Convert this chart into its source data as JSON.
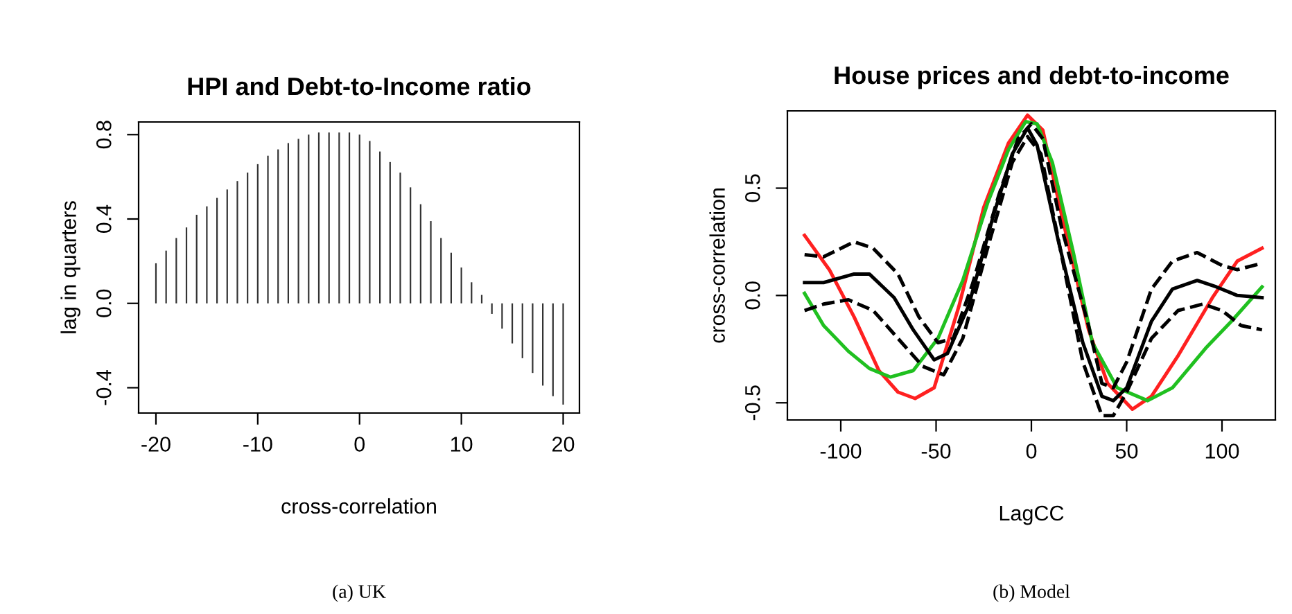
{
  "chart_data": [
    {
      "type": "bar",
      "title": "HPI and Debt-to-Income ratio",
      "xlabel": "cross-correlation",
      "ylabel": "lag in quarters",
      "color": "#333333",
      "x": [
        -20,
        -19,
        -18,
        -17,
        -16,
        -15,
        -14,
        -13,
        -12,
        -11,
        -10,
        -9,
        -8,
        -7,
        -6,
        -5,
        -4,
        -3,
        -2,
        -1,
        0,
        1,
        2,
        3,
        4,
        5,
        6,
        7,
        8,
        9,
        10,
        11,
        12,
        13,
        14,
        15,
        16,
        17,
        18,
        19,
        20
      ],
      "values": [
        0.19,
        0.25,
        0.31,
        0.36,
        0.42,
        0.46,
        0.5,
        0.54,
        0.58,
        0.62,
        0.66,
        0.7,
        0.73,
        0.76,
        0.78,
        0.8,
        0.81,
        0.81,
        0.81,
        0.81,
        0.8,
        0.77,
        0.72,
        0.67,
        0.62,
        0.55,
        0.47,
        0.39,
        0.31,
        0.24,
        0.17,
        0.1,
        0.04,
        -0.05,
        -0.12,
        -0.19,
        -0.26,
        -0.33,
        -0.39,
        -0.44,
        -0.48
      ],
      "xlim": [
        -21.7,
        21.6
      ],
      "ylim": [
        -0.52,
        0.86
      ],
      "xticks": [
        -20,
        -10,
        0,
        10,
        20
      ],
      "yticks": [
        {
          "value": -0.4,
          "label": "-0.4"
        },
        {
          "value": 0.0,
          "label": "0.0"
        },
        {
          "value": 0.4,
          "label": "0.4"
        },
        {
          "value": 0.8,
          "label": "0.8"
        }
      ],
      "grid": false,
      "annotations": [
        "(a) UK"
      ]
    },
    {
      "type": "line",
      "title": "House prices and debt-to-income",
      "xlabel": "LagCC",
      "ylabel": "cross-correlation",
      "xlim": [
        -128,
        128
      ],
      "ylim": [
        -0.58,
        0.86
      ],
      "xticks": [
        -100,
        -50,
        0,
        50,
        100
      ],
      "yticks": [
        {
          "value": -0.5,
          "label": "-0.5"
        },
        {
          "value": 0.0,
          "label": "0.0"
        },
        {
          "value": 0.5,
          "label": "0.5"
        }
      ],
      "grid": false,
      "marker": "none",
      "annotations": [
        "(b) Model"
      ],
      "series": [
        {
          "color": "#ff2020",
          "line_style": "solid",
          "x": [
            -119,
            -106,
            -93,
            -80,
            -70,
            -61,
            -51,
            -38,
            -25,
            -12,
            -2,
            6,
            16,
            30,
            40,
            53,
            63,
            77,
            95,
            108,
            121
          ],
          "values": [
            0.28,
            0.12,
            -0.1,
            -0.35,
            -0.45,
            -0.48,
            -0.43,
            -0.05,
            0.41,
            0.71,
            0.84,
            0.77,
            0.37,
            -0.16,
            -0.41,
            -0.53,
            -0.47,
            -0.28,
            -0.01,
            0.16,
            0.22
          ]
        },
        {
          "color": "#20c020",
          "line_style": "solid",
          "x": [
            -119,
            -109,
            -96,
            -85,
            -74,
            -62,
            -49,
            -36,
            -23,
            -12,
            -3,
            3,
            11,
            22,
            32,
            45,
            61,
            74,
            92,
            105,
            121
          ],
          "values": [
            0.01,
            -0.14,
            -0.26,
            -0.34,
            -0.38,
            -0.35,
            -0.2,
            0.07,
            0.43,
            0.68,
            0.81,
            0.8,
            0.62,
            0.2,
            -0.22,
            -0.43,
            -0.49,
            -0.43,
            -0.24,
            -0.12,
            0.04
          ]
        },
        {
          "color": "#000000",
          "line_style": "dashed",
          "x": [
            -119,
            -109,
            -93,
            -83,
            -70,
            -59,
            -49,
            -41,
            -31,
            -17,
            -7,
            0,
            6,
            16,
            30,
            37,
            43,
            50,
            63,
            74,
            87,
            100,
            108,
            121
          ],
          "values": [
            0.19,
            0.18,
            0.25,
            0.22,
            0.1,
            -0.1,
            -0.22,
            -0.2,
            0.05,
            0.47,
            0.73,
            0.8,
            0.73,
            0.31,
            -0.14,
            -0.41,
            -0.43,
            -0.31,
            0.03,
            0.16,
            0.2,
            0.14,
            0.12,
            0.15
          ]
        },
        {
          "color": "#000000",
          "line_style": "dashed",
          "x": [
            -119,
            -109,
            -96,
            -83,
            -70,
            -57,
            -46,
            -36,
            -23,
            -10,
            -2,
            5,
            16,
            27,
            37,
            43,
            50,
            63,
            77,
            90,
            100,
            110,
            121
          ],
          "values": [
            -0.07,
            -0.04,
            -0.02,
            -0.07,
            -0.2,
            -0.33,
            -0.37,
            -0.2,
            0.22,
            0.62,
            0.74,
            0.66,
            0.18,
            -0.31,
            -0.56,
            -0.56,
            -0.45,
            -0.2,
            -0.07,
            -0.04,
            -0.07,
            -0.14,
            -0.16
          ]
        },
        {
          "color": "#000000",
          "line_style": "solid",
          "x": [
            -119,
            -109,
            -93,
            -85,
            -72,
            -62,
            -51,
            -44,
            -33,
            -20,
            -10,
            -2,
            3,
            14,
            27,
            37,
            43,
            50,
            63,
            74,
            87,
            97,
            108,
            121
          ],
          "values": [
            0.06,
            0.06,
            0.1,
            0.1,
            -0.01,
            -0.16,
            -0.3,
            -0.27,
            -0.05,
            0.37,
            0.66,
            0.78,
            0.7,
            0.26,
            -0.22,
            -0.47,
            -0.49,
            -0.43,
            -0.12,
            0.03,
            0.07,
            0.04,
            0.0,
            -0.01
          ]
        }
      ]
    }
  ]
}
